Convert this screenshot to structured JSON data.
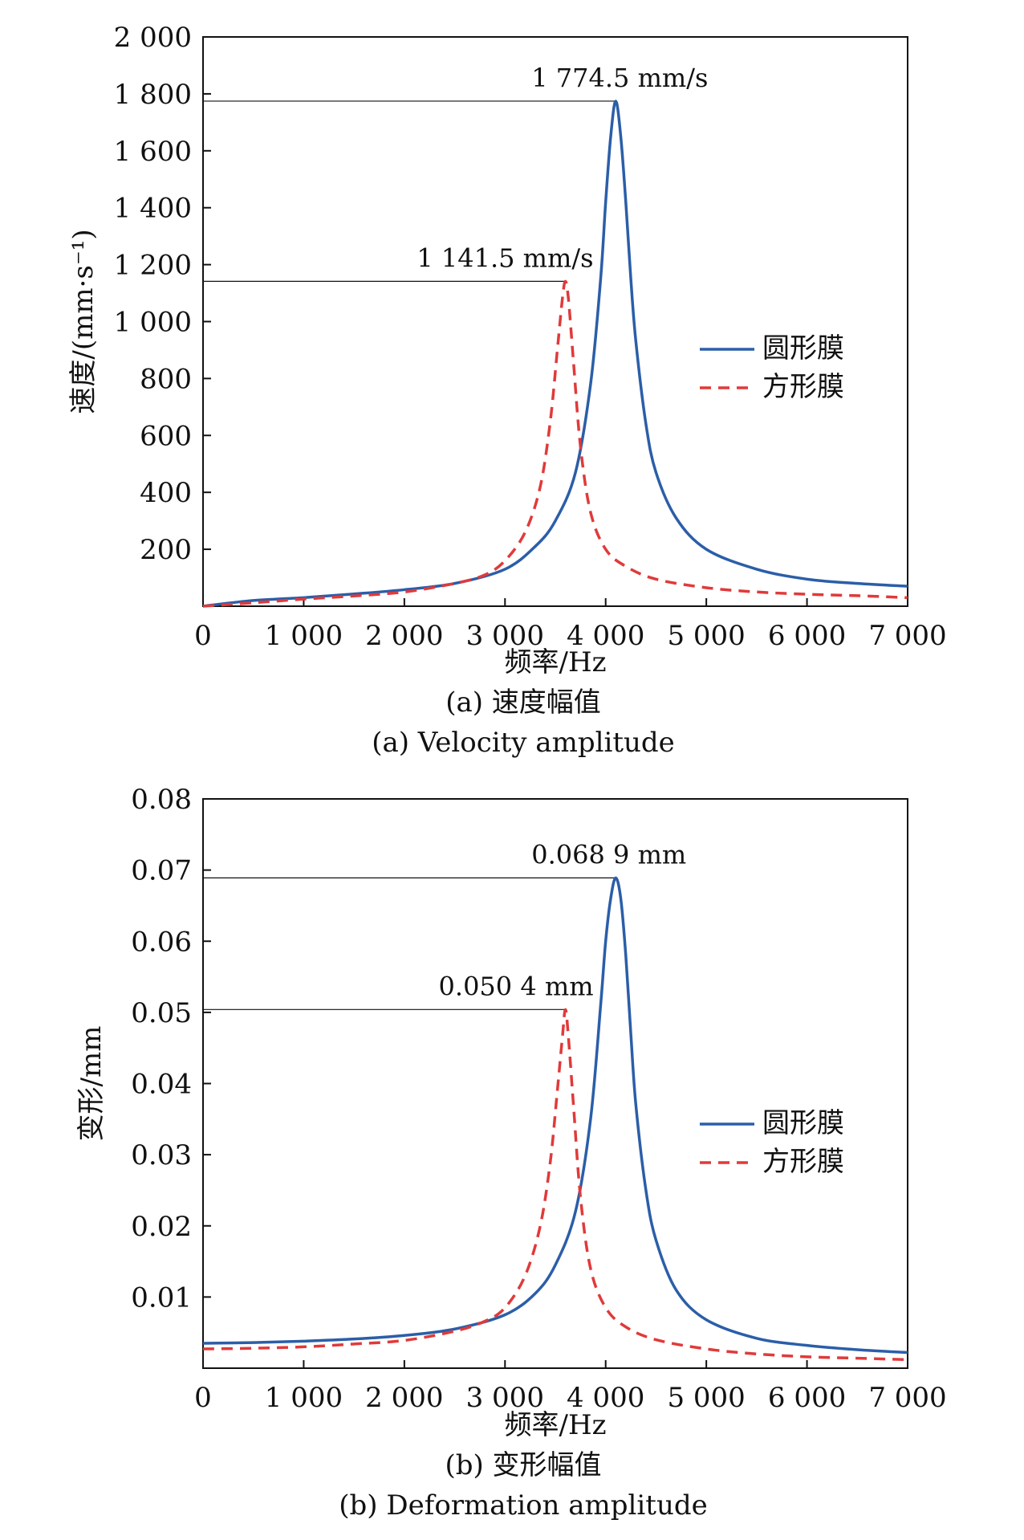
{
  "colors": {
    "circular": "#2b5ea8",
    "square": "#e03a3a",
    "axis": "#111111"
  },
  "chart_data": [
    {
      "type": "line",
      "title": "",
      "caption_cn": "(a) 速度幅值",
      "caption_en": "(a) Velocity amplitude",
      "xlabel": "频率/Hz",
      "ylabel": "速度/(mm·s⁻¹)",
      "xlim": [
        0,
        7000
      ],
      "ylim": [
        0,
        2000
      ],
      "xticks": [
        0,
        1000,
        2000,
        3000,
        4000,
        5000,
        6000,
        7000
      ],
      "xtick_labels": [
        "0",
        "1 000",
        "2 000",
        "3 000",
        "4 000",
        "5 000",
        "6 000",
        "7 000"
      ],
      "yticks": [
        200,
        400,
        600,
        800,
        1000,
        1200,
        1400,
        1600,
        1800,
        2000
      ],
      "ytick_labels": [
        "200",
        "400",
        "600",
        "800",
        "1 000",
        "1 200",
        "1 400",
        "1 600",
        "1 800",
        "2 000"
      ],
      "legend": {
        "position": "center-right"
      },
      "series": [
        {
          "name": "圆形膜",
          "style": "solid",
          "color": "#2b5ea8",
          "x": [
            0,
            500,
            1000,
            1500,
            2000,
            2500,
            3000,
            3300,
            3500,
            3700,
            3850,
            3950,
            4000,
            4050,
            4100,
            4150,
            4200,
            4250,
            4300,
            4400,
            4500,
            4700,
            5000,
            5500,
            6000,
            6500,
            7000
          ],
          "y": [
            0,
            20,
            30,
            43,
            58,
            80,
            130,
            210,
            300,
            470,
            780,
            1150,
            1420,
            1650,
            1774.5,
            1650,
            1420,
            1150,
            930,
            640,
            470,
            310,
            200,
            130,
            95,
            80,
            70
          ]
        },
        {
          "name": "方形膜",
          "style": "dashed",
          "color": "#e03a3a",
          "x": [
            0,
            500,
            1000,
            1500,
            2000,
            2500,
            2800,
            3000,
            3200,
            3350,
            3450,
            3520,
            3570,
            3600,
            3630,
            3680,
            3750,
            3850,
            4000,
            4200,
            4500,
            5000,
            5500,
            6000,
            6500,
            7000
          ],
          "y": [
            0,
            12,
            25,
            36,
            50,
            80,
            110,
            160,
            260,
            420,
            650,
            900,
            1080,
            1141.5,
            1080,
            860,
            560,
            330,
            200,
            140,
            95,
            65,
            50,
            42,
            37,
            30
          ]
        }
      ],
      "annotations": [
        {
          "text": "1 774.5 mm/s",
          "x": 4100,
          "y": 1774.5
        },
        {
          "text": "1 141.5 mm/s",
          "x": 3600,
          "y": 1141.5
        }
      ]
    },
    {
      "type": "line",
      "title": "",
      "caption_cn": "(b) 变形幅值",
      "caption_en": "(b) Deformation amplitude",
      "xlabel": "频率/Hz",
      "ylabel": "变形/mm",
      "xlim": [
        0,
        7000
      ],
      "ylim": [
        0,
        0.08
      ],
      "xticks": [
        0,
        1000,
        2000,
        3000,
        4000,
        5000,
        6000,
        7000
      ],
      "xtick_labels": [
        "0",
        "1 000",
        "2 000",
        "3 000",
        "4 000",
        "5 000",
        "6 000",
        "7 000"
      ],
      "yticks": [
        0.01,
        0.02,
        0.03,
        0.04,
        0.05,
        0.06,
        0.07,
        0.08
      ],
      "ytick_labels": [
        "0.01",
        "0.02",
        "0.03",
        "0.04",
        "0.05",
        "0.06",
        "0.07",
        "0.08"
      ],
      "legend": {
        "position": "center-right"
      },
      "series": [
        {
          "name": "圆形膜",
          "style": "solid",
          "color": "#2b5ea8",
          "x": [
            0,
            500,
            1000,
            1500,
            2000,
            2500,
            3000,
            3300,
            3500,
            3700,
            3850,
            3950,
            4000,
            4050,
            4100,
            4150,
            4200,
            4250,
            4300,
            4400,
            4500,
            4700,
            5000,
            5500,
            6000,
            6500,
            7000
          ],
          "y": [
            0.0035,
            0.0036,
            0.0038,
            0.0041,
            0.0046,
            0.0055,
            0.0075,
            0.0105,
            0.0145,
            0.022,
            0.035,
            0.051,
            0.06,
            0.066,
            0.0689,
            0.066,
            0.058,
            0.047,
            0.037,
            0.025,
            0.018,
            0.011,
            0.0068,
            0.0042,
            0.0032,
            0.0026,
            0.0022
          ]
        },
        {
          "name": "方形膜",
          "style": "dashed",
          "color": "#e03a3a",
          "x": [
            0,
            500,
            1000,
            1500,
            2000,
            2500,
            2800,
            3000,
            3200,
            3350,
            3450,
            3520,
            3570,
            3600,
            3630,
            3680,
            3750,
            3850,
            4000,
            4200,
            4500,
            5000,
            5500,
            6000,
            6500,
            7000
          ],
          "y": [
            0.0027,
            0.0028,
            0.003,
            0.0034,
            0.0039,
            0.0052,
            0.0066,
            0.0085,
            0.013,
            0.02,
            0.029,
            0.039,
            0.0465,
            0.0504,
            0.0465,
            0.037,
            0.024,
            0.014,
            0.0085,
            0.0058,
            0.004,
            0.0027,
            0.002,
            0.0016,
            0.0014,
            0.0012
          ]
        }
      ],
      "annotations": [
        {
          "text": "0.068 9 mm",
          "x": 4100,
          "y": 0.0689
        },
        {
          "text": "0.050 4 mm",
          "x": 3600,
          "y": 0.0504
        }
      ]
    }
  ]
}
